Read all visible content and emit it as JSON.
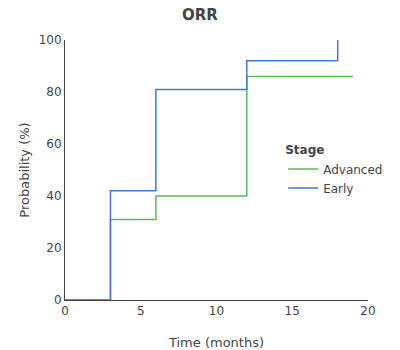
{
  "chart_data": {
    "type": "line",
    "title": "ORR",
    "x_label": "Time (months)",
    "y_label": "Probability (%)",
    "series": [
      {
        "name": "Advanced",
        "color": "#5db85d",
        "line_style": "steps",
        "x": [
          0,
          3,
          3,
          6,
          6,
          12,
          12,
          19
        ],
        "values": [
          0,
          0,
          31,
          31,
          40,
          40,
          86,
          86
        ]
      },
      {
        "name": "Early",
        "color": "#4477cc",
        "line_style": "steps",
        "x": [
          0,
          3,
          3,
          6,
          6,
          12,
          12,
          18,
          18
        ],
        "values": [
          0,
          0,
          42,
          42,
          81,
          81,
          92,
          92,
          100
        ]
      }
    ],
    "legend_title": "Stage",
    "legend": "right",
    "xlim": [
      0,
      20
    ],
    "xticks": [
      0,
      5,
      10,
      15,
      20
    ],
    "ylim": [
      0,
      100
    ],
    "yticks": [
      0,
      20,
      40,
      60,
      80,
      100
    ],
    "grid": false
  }
}
